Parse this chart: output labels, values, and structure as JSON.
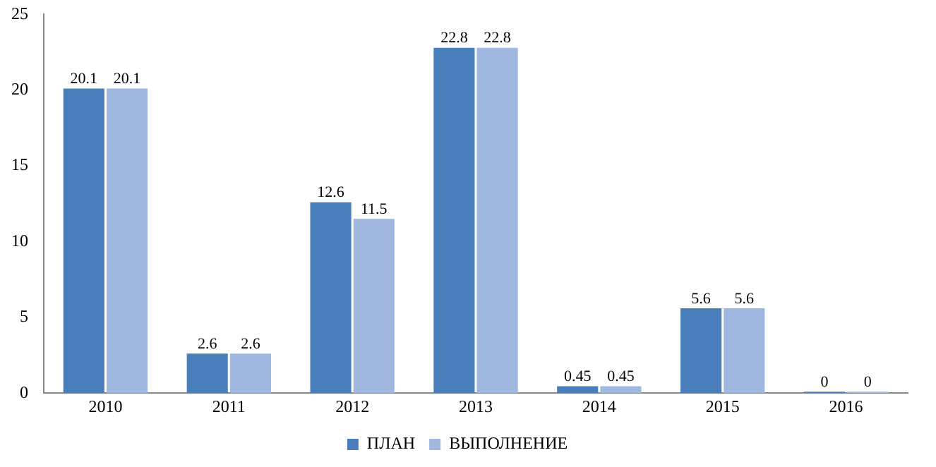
{
  "chart_data": {
    "type": "bar",
    "categories": [
      "2010",
      "2011",
      "2012",
      "2013",
      "2014",
      "2015",
      "2016"
    ],
    "series": [
      {
        "name": "ПЛАН",
        "color": "#4a7ebb",
        "values": [
          20.1,
          2.6,
          12.6,
          22.8,
          0.45,
          5.6,
          0
        ]
      },
      {
        "name": "ВЫПОЛНЕНИЕ",
        "color": "#a0b8e0",
        "values": [
          20.1,
          2.6,
          11.5,
          22.8,
          0.45,
          5.6,
          0
        ]
      }
    ],
    "ylim": [
      0,
      25
    ],
    "yticks": [
      0,
      5,
      10,
      15,
      20,
      25
    ],
    "grid": false,
    "legend": "bottom",
    "data_labels": true
  }
}
